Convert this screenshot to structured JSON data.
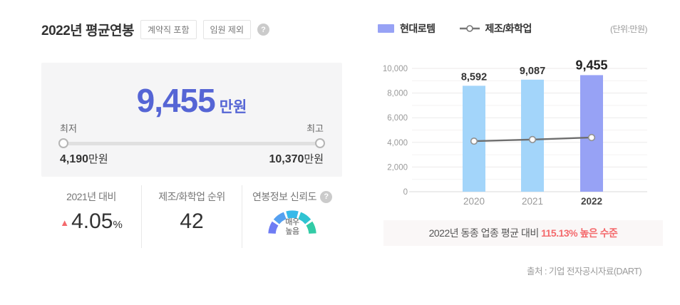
{
  "header": {
    "title": "2022년 평균연봉",
    "badges": [
      "계약직 포함",
      "임원 제외"
    ],
    "help_glyph": "?"
  },
  "salary_summary": {
    "value": "9,455",
    "unit": "만원",
    "accent_color": "#5565d5",
    "min_label": "최저",
    "max_label": "최고",
    "min_value": "4,190",
    "min_unit": "만원",
    "max_value": "10,370",
    "max_unit": "만원"
  },
  "stats": {
    "yoy": {
      "label": "2021년 대비",
      "arrow": "▲",
      "arrow_color": "#f4696c",
      "value": "4.05",
      "unit": "%"
    },
    "rank": {
      "label": "제조/화학업 순위",
      "value": "42"
    },
    "reliability": {
      "label": "연봉정보 신뢰도",
      "help_glyph": "?",
      "level_line1": "매우",
      "level_line2": "높음",
      "gauge_colors": [
        "#6e7cf4",
        "#55a0f0",
        "#36b9e9",
        "#2fc3d2",
        "#32cba6"
      ]
    }
  },
  "chart": {
    "legend_company": "현대로템",
    "legend_industry": "제조/화학업",
    "company_color": "#97a2f5",
    "industry_line_color": "#6e6e6e",
    "unit_note": "(단위:만원)"
  },
  "chart_data": {
    "type": "bar",
    "categories": [
      "2020",
      "2021",
      "2022"
    ],
    "series": [
      {
        "name": "현대로템",
        "type": "bar",
        "values": [
          8592,
          9087,
          9455
        ],
        "labels": [
          "8,592",
          "9,087",
          "9,455"
        ],
        "colors": [
          "#a3d5fa",
          "#a3d5fa",
          "#97a2f5"
        ],
        "highlight_index": 2
      },
      {
        "name": "제조/화학업",
        "type": "line",
        "values": [
          4100,
          4230,
          4395
        ],
        "estimated": true,
        "color": "#6e6e6e"
      }
    ],
    "title": "",
    "xlabel": "",
    "ylabel": "",
    "unit": "만원",
    "ylim": [
      0,
      10000
    ],
    "yticks": [
      0,
      2000,
      4000,
      6000,
      8000,
      10000
    ],
    "ytick_labels": [
      "0",
      "2,000",
      "4,000",
      "6,000",
      "8,000",
      "10,000"
    ],
    "grid": true,
    "legend_position": "top"
  },
  "annotation": {
    "prefix": "2022년 동종 업종 평균 대비 ",
    "highlight": "115.13% 높은 수준",
    "highlight_color": "#f4696c"
  },
  "footer": {
    "source": "출처 : 기업 전자공시자료(DART)"
  }
}
